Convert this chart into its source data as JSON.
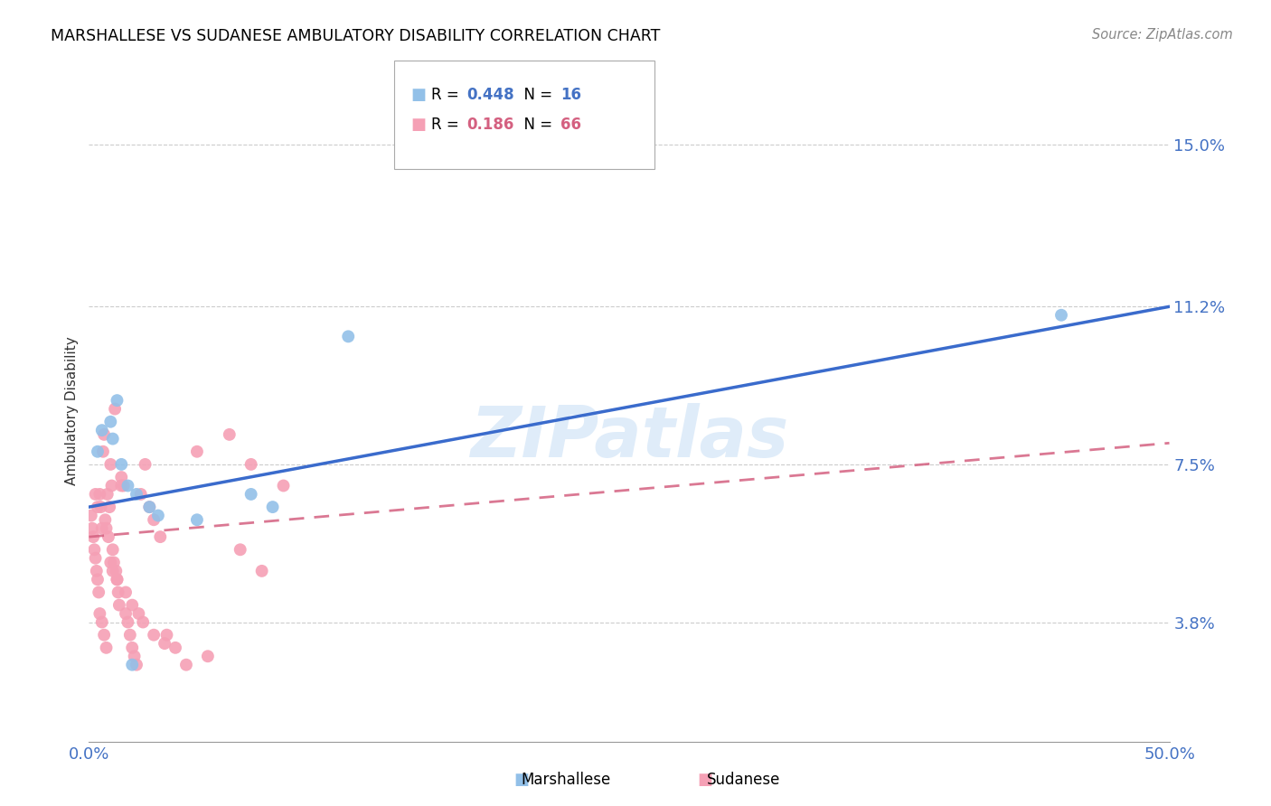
{
  "title": "MARSHALLESE VS SUDANESE AMBULATORY DISABILITY CORRELATION CHART",
  "source": "Source: ZipAtlas.com",
  "ylabel": "Ambulatory Disability",
  "ytick_labels": [
    "3.8%",
    "7.5%",
    "11.2%",
    "15.0%"
  ],
  "ytick_values": [
    3.8,
    7.5,
    11.2,
    15.0
  ],
  "xlim": [
    0.0,
    50.0
  ],
  "ylim": [
    1.0,
    16.5
  ],
  "watermark": "ZIPatlas",
  "marshallese_color": "#92c0e8",
  "sudanese_color": "#f5a0b5",
  "blue_line_color": "#3a6bcc",
  "pink_line_color": "#d46080",
  "blue_r": "0.448",
  "blue_n": "16",
  "pink_r": "0.186",
  "pink_n": "66",
  "blue_line_x0": 0.0,
  "blue_line_y0": 6.5,
  "blue_line_x1": 50.0,
  "blue_line_y1": 11.2,
  "pink_line_x0": 0.0,
  "pink_line_y0": 5.8,
  "pink_line_x1": 50.0,
  "pink_line_y1": 8.0,
  "marshallese_x": [
    0.4,
    0.6,
    1.0,
    1.1,
    1.3,
    1.5,
    1.8,
    2.2,
    2.8,
    3.2,
    5.0,
    7.5,
    8.5,
    12.0,
    45.0,
    2.0
  ],
  "marshallese_y": [
    7.8,
    8.3,
    8.5,
    8.1,
    9.0,
    7.5,
    7.0,
    6.8,
    6.5,
    6.3,
    6.2,
    6.8,
    6.5,
    10.5,
    11.0,
    2.8
  ],
  "sudanese_x": [
    0.1,
    0.15,
    0.2,
    0.25,
    0.3,
    0.35,
    0.4,
    0.45,
    0.5,
    0.55,
    0.6,
    0.65,
    0.7,
    0.75,
    0.8,
    0.85,
    0.9,
    0.95,
    1.0,
    1.05,
    1.1,
    1.15,
    1.2,
    1.25,
    1.3,
    1.35,
    1.4,
    1.5,
    1.6,
    1.7,
    1.8,
    1.9,
    2.0,
    2.1,
    2.2,
    2.4,
    2.6,
    2.8,
    3.0,
    3.3,
    3.6,
    4.0,
    5.0,
    6.5,
    7.5,
    8.0,
    0.3,
    0.4,
    0.5,
    0.6,
    0.7,
    0.8,
    1.0,
    1.1,
    1.3,
    1.5,
    1.7,
    2.0,
    2.3,
    2.5,
    3.0,
    3.5,
    4.5,
    5.5,
    7.0,
    9.0
  ],
  "sudanese_y": [
    6.3,
    6.0,
    5.8,
    5.5,
    5.3,
    5.0,
    4.8,
    4.5,
    6.8,
    6.5,
    6.0,
    7.8,
    8.2,
    6.2,
    6.0,
    6.8,
    5.8,
    6.5,
    7.5,
    7.0,
    5.5,
    5.2,
    8.8,
    5.0,
    4.8,
    4.5,
    4.2,
    7.2,
    7.0,
    4.0,
    3.8,
    3.5,
    3.2,
    3.0,
    2.8,
    6.8,
    7.5,
    6.5,
    6.2,
    5.8,
    3.5,
    3.2,
    7.8,
    8.2,
    7.5,
    5.0,
    6.8,
    6.5,
    4.0,
    3.8,
    3.5,
    3.2,
    5.2,
    5.0,
    4.8,
    7.0,
    4.5,
    4.2,
    4.0,
    3.8,
    3.5,
    3.3,
    2.8,
    3.0,
    5.5,
    7.0
  ]
}
